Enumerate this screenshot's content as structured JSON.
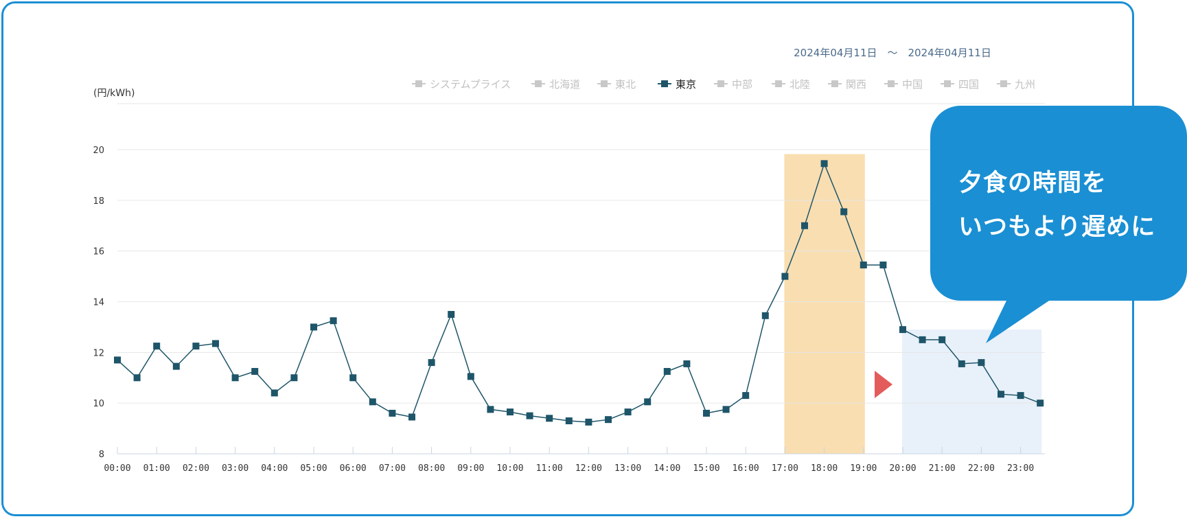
{
  "date_range": "2024年04月11日　～　2024年04月11日",
  "callout": {
    "line1": "夕食の時間を",
    "line2": "いつもより遅めに"
  },
  "colors": {
    "frame": "#1a8fd3",
    "series": "#1e5569",
    "legend_inactive": "#c8c8c8",
    "peak_highlight": "#f9deb1",
    "shift_highlight": "#e8f0f9",
    "arrow": "#e45b5b",
    "callout_bg": "#1a8fd3"
  },
  "chart_data": {
    "type": "line",
    "ylabel": "(円/kWh)",
    "ylim": [
      8,
      20
    ],
    "yticks": [
      8,
      10,
      12,
      14,
      16,
      18,
      20
    ],
    "x_tick_labels": [
      "00:00",
      "01:00",
      "02:00",
      "03:00",
      "04:00",
      "05:00",
      "06:00",
      "07:00",
      "08:00",
      "09:00",
      "10:00",
      "11:00",
      "12:00",
      "13:00",
      "14:00",
      "15:00",
      "16:00",
      "17:00",
      "18:00",
      "19:00",
      "20:00",
      "21:00",
      "22:00",
      "23:00"
    ],
    "legend": [
      {
        "name": "システムプライス",
        "active": false
      },
      {
        "name": "北海道",
        "active": false
      },
      {
        "name": "東北",
        "active": false
      },
      {
        "name": "東京",
        "active": true
      },
      {
        "name": "中部",
        "active": false
      },
      {
        "name": "北陸",
        "active": false
      },
      {
        "name": "関西",
        "active": false
      },
      {
        "name": "中国",
        "active": false
      },
      {
        "name": "四国",
        "active": false
      },
      {
        "name": "九州",
        "active": false
      }
    ],
    "legend_position": "top-right",
    "grid": true,
    "series": [
      {
        "name": "東京",
        "x": [
          "00:00",
          "00:30",
          "01:00",
          "01:30",
          "02:00",
          "02:30",
          "03:00",
          "03:30",
          "04:00",
          "04:30",
          "05:00",
          "05:30",
          "06:00",
          "06:30",
          "07:00",
          "07:30",
          "08:00",
          "08:30",
          "09:00",
          "09:30",
          "10:00",
          "10:30",
          "11:00",
          "11:30",
          "12:00",
          "12:30",
          "13:00",
          "13:30",
          "14:00",
          "14:30",
          "15:00",
          "15:30",
          "16:00",
          "16:30",
          "17:00",
          "17:30",
          "18:00",
          "18:30",
          "19:00",
          "19:30",
          "20:00",
          "20:30",
          "21:00",
          "21:30",
          "22:00",
          "22:30",
          "23:00",
          "23:30"
        ],
        "values": [
          11.7,
          11.0,
          12.25,
          11.45,
          12.25,
          12.35,
          11.0,
          11.25,
          10.4,
          11.0,
          13.0,
          13.25,
          11.0,
          10.05,
          9.6,
          9.45,
          11.6,
          13.5,
          11.05,
          9.75,
          9.65,
          9.5,
          9.4,
          9.3,
          9.25,
          9.35,
          9.65,
          10.05,
          11.25,
          11.55,
          9.6,
          9.75,
          10.3,
          13.45,
          15.0,
          17.0,
          19.45,
          17.55,
          15.45,
          15.45,
          12.9,
          12.5,
          12.5,
          11.55,
          11.6,
          10.35,
          10.3,
          10.0
        ]
      }
    ],
    "highlights": [
      {
        "from": "17:00",
        "to": "19:00",
        "y_from": 8,
        "y_to": 19.5,
        "role": "peak"
      },
      {
        "from": "20:00",
        "to": "23:30",
        "y_from": 8,
        "y_to": 12.9,
        "role": "shift"
      }
    ]
  }
}
